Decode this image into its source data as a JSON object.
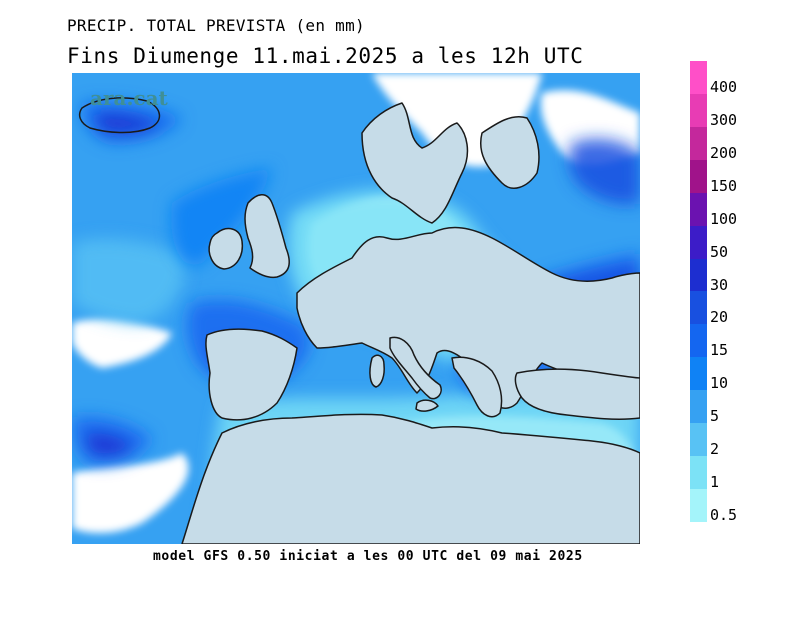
{
  "title_line1": "PRECIP. TOTAL PREVISTA (en mm)",
  "title_line2": "Fins Diumenge 11.mai.2025 a les 12h UTC",
  "footer": "model GFS 0.50 iniciat a les 00 UTC del 09 mai 2025",
  "brand": "ara.cat",
  "colors": {
    "land": "#c6dce8",
    "sea_base": "#36a1f2",
    "coastline": "#1a1a1a"
  },
  "legend": {
    "unit": "mm",
    "levels": [
      {
        "label": "400",
        "color": "#ff4fc8"
      },
      {
        "label": "300",
        "color": "#e83cb4"
      },
      {
        "label": "200",
        "color": "#c4289c"
      },
      {
        "label": "150",
        "color": "#a0138a"
      },
      {
        "label": "100",
        "color": "#6b12b0"
      },
      {
        "label": "50",
        "color": "#3c1cc8"
      },
      {
        "label": "30",
        "color": "#1d2ed0"
      },
      {
        "label": "20",
        "color": "#1850e0"
      },
      {
        "label": "15",
        "color": "#1466f0"
      },
      {
        "label": "10",
        "color": "#0f82f5"
      },
      {
        "label": "5",
        "color": "#36a1f2"
      },
      {
        "label": "2",
        "color": "#58c2f4"
      },
      {
        "label": "1",
        "color": "#7ce2f6"
      },
      {
        "label": "0.5",
        "color": "#a4f4fa"
      }
    ]
  }
}
